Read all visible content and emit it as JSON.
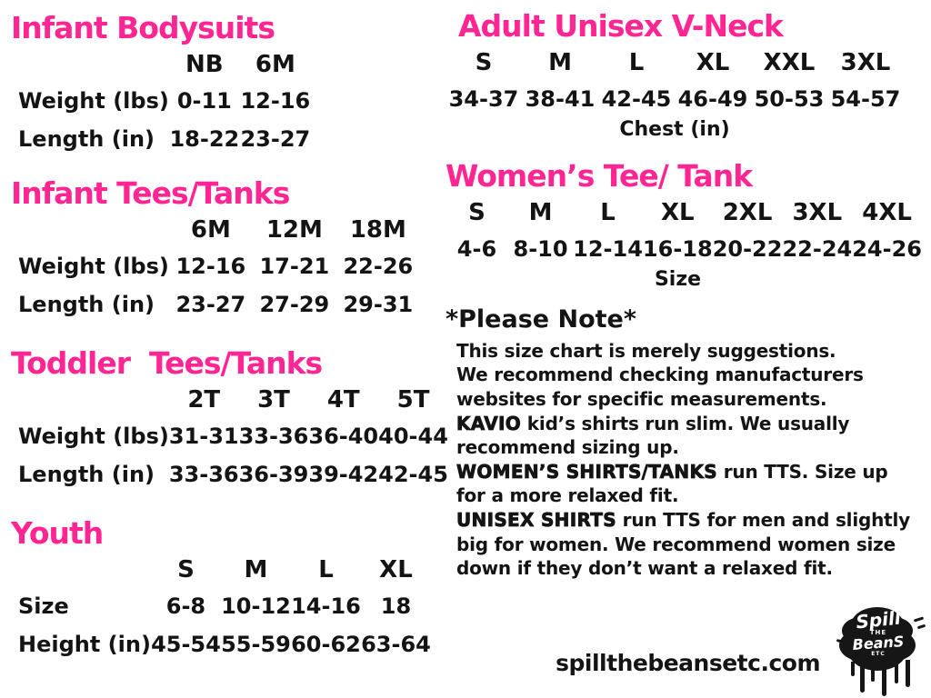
{
  "colors": {
    "accent_pink": "#ff2593",
    "ink": "#141414"
  },
  "tables": {
    "infant_bodysuits": {
      "title": "Infant Bodysuits",
      "columns": [
        "NB",
        "6M"
      ],
      "rows": [
        {
          "label": "Weight (lbs)",
          "values": [
            "0-11",
            "12-16"
          ]
        },
        {
          "label": "Length (in)",
          "values": [
            "18-22",
            "23-27"
          ]
        }
      ]
    },
    "infant_tees": {
      "title": "Infant Tees/Tanks",
      "columns": [
        "6M",
        "12M",
        "18M"
      ],
      "rows": [
        {
          "label": "Weight (lbs)",
          "values": [
            "12-16",
            "17-21",
            "22-26"
          ]
        },
        {
          "label": "Length (in)",
          "values": [
            "23-27",
            "27-29",
            "29-31"
          ]
        }
      ]
    },
    "toddler_tees": {
      "title": "Toddler  Tees/Tanks",
      "columns": [
        "2T",
        "3T",
        "4T",
        "5T"
      ],
      "rows": [
        {
          "label": "Weight (lbs)",
          "values": [
            "31-31",
            "33-36",
            "36-40",
            "40-44"
          ]
        },
        {
          "label": "Length (in)",
          "values": [
            "33-36",
            "36-39",
            "39-42",
            "42-45"
          ]
        }
      ]
    },
    "youth": {
      "title": "Youth",
      "columns": [
        "S",
        "M",
        "L",
        "XL"
      ],
      "rows": [
        {
          "label": "Size",
          "values": [
            "6-8",
            "10-12",
            "14-16",
            "18"
          ]
        },
        {
          "label": "Height (in)",
          "values": [
            "45-54",
            "55-59",
            "60-62",
            "63-64"
          ]
        }
      ]
    },
    "adult_vneck": {
      "title": "Adult Unisex V-Neck",
      "columns": [
        "S",
        "M",
        "L",
        "XL",
        "XXL",
        "3XL"
      ],
      "values": [
        "34-37",
        "38-41",
        "42-45",
        "46-49",
        "50-53",
        "54-57"
      ],
      "caption": "Chest (in)"
    },
    "womens_tee": {
      "title": "Women’s Tee/ Tank",
      "columns": [
        "S",
        "M",
        "L",
        "XL",
        "2XL",
        "3XL",
        "4XL"
      ],
      "values": [
        "4-6",
        "8-10",
        "12-14",
        "16-18",
        "20-22",
        "22-24",
        "24-26"
      ],
      "caption": "Size"
    }
  },
  "note": {
    "title": "*Please Note*",
    "lines": [
      {
        "bold": "",
        "text": "This size chart is merely suggestions."
      },
      {
        "bold": "",
        "text": "We recommend checking manufacturers websites for specific measurements."
      },
      {
        "bold": "KAVIO",
        "text": " kid’s shirts run slim. We usually recommend sizing up."
      },
      {
        "bold": "WOMEN’S SHIRTS/TANKS",
        "text": " run TTS. Size up for a more relaxed fit."
      },
      {
        "bold": "UNISEX SHIRTS",
        "text": " run TTS for men and slightly big for women. We recommend women size down if they don’t want a relaxed fit."
      }
    ]
  },
  "footer": {
    "website": "spillthebeansetc.com",
    "logo": {
      "line1": "Spill",
      "line2": "THE",
      "line3": "BeanS",
      "line4": "ETC"
    }
  }
}
